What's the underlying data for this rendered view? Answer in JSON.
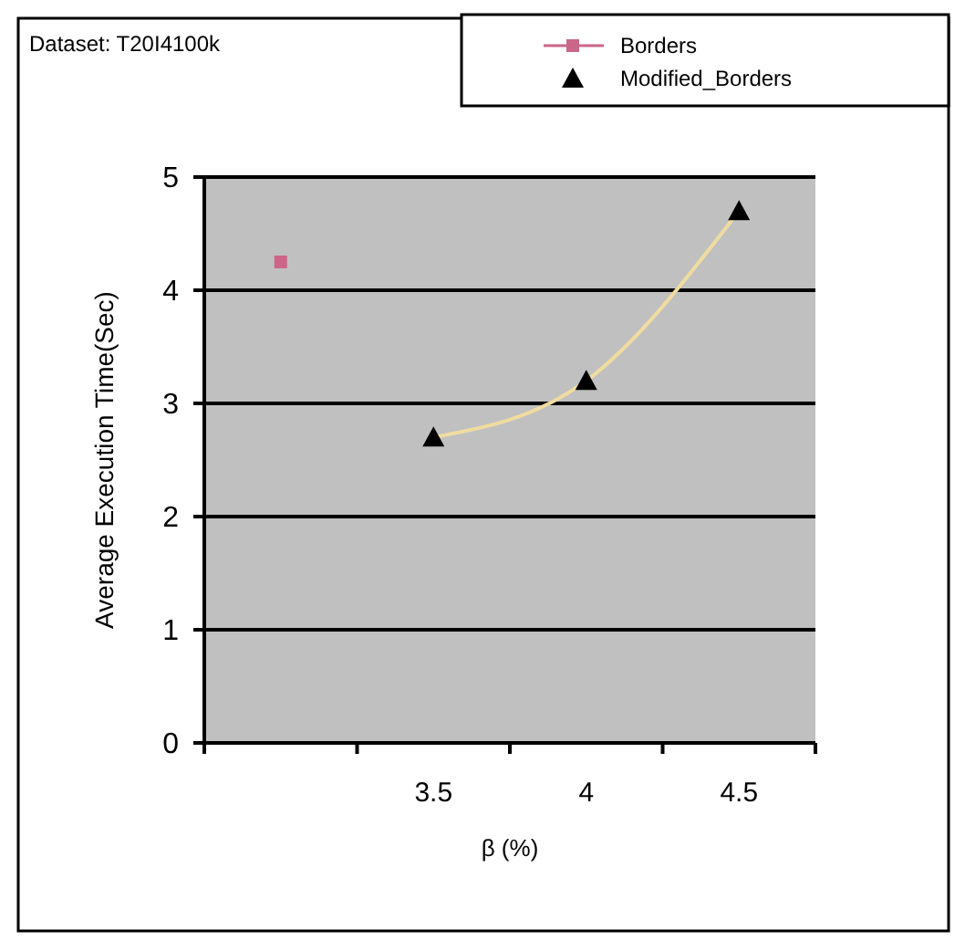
{
  "chart_data": {
    "type": "line",
    "title": "Dataset: T20I4100k",
    "xlabel": "β (%)",
    "ylabel": "Average Execution Time(Sec)",
    "categories": [
      null,
      "3.5",
      "4",
      "4.5"
    ],
    "series": [
      {
        "name": "Borders",
        "color": "#cc6688",
        "marker": "square",
        "values": [
          4.25,
          null,
          null,
          null
        ]
      },
      {
        "name": "Modified_Borders",
        "type": "scatter",
        "color": "#000000",
        "marker": "triangle",
        "values": [
          null,
          2.7,
          3.2,
          4.7
        ]
      },
      {
        "type": "line",
        "color": "#f0dca0",
        "marker": "none",
        "values": [
          null,
          2.7,
          3.2,
          4.7
        ]
      }
    ],
    "ylim": [
      0,
      5
    ],
    "yticks": [
      0,
      1,
      2,
      3,
      4,
      5
    ],
    "grid": "y",
    "legend": "top right"
  }
}
